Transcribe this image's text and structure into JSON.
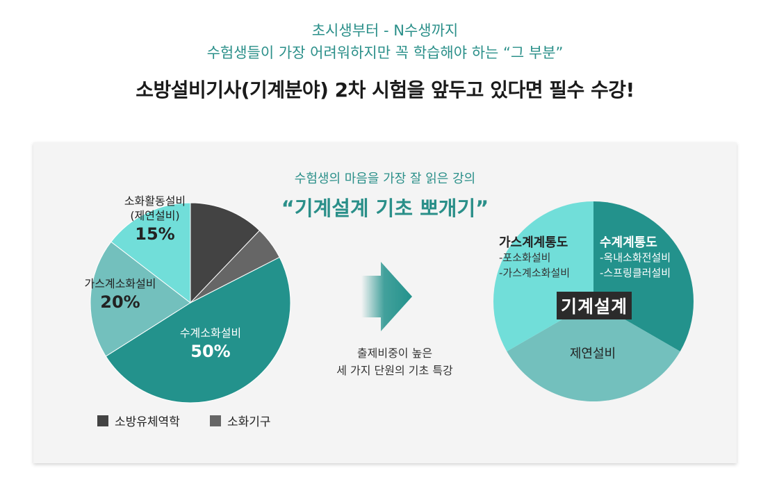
{
  "header": {
    "line1": "초시생부터 - N수생까지",
    "line2": "수험생들이 가장 어려워하지만 꼭 학습해야 하는 “그 부분”",
    "headline": "소방설비기사(기계분야) 2차 시험을 앞두고 있다면 필수 수강!"
  },
  "panel": {
    "tagline": "수험생의 마음을 가장 잘 읽은 강의",
    "title": "“기계설계 기초 뽀개기”",
    "arrow_caption_1": "출제비중이 높은",
    "arrow_caption_2": "세 가지 단원의 기초 특강"
  },
  "chart_data": [
    {
      "type": "pie",
      "title": "",
      "slices": [
        {
          "label": "소방유체역학",
          "value": 12.5,
          "color": "#434343"
        },
        {
          "label": "소화기구",
          "value": 5.5,
          "color": "#666666"
        },
        {
          "label": "수계소화설비",
          "value": 50,
          "display": "50%",
          "color": "#23928c"
        },
        {
          "label": "가스계소화설비",
          "value": 20,
          "display": "20%",
          "color": "#73c0bd"
        },
        {
          "label": "소화활동설비",
          "sublabel": "(제연설비)",
          "value": 15,
          "display": "15%",
          "color": "#71ded9"
        }
      ],
      "legend": [
        {
          "label": "소방유체역학",
          "color": "#434343"
        },
        {
          "label": "소화기구",
          "color": "#666666"
        }
      ],
      "legend_position": "bottom"
    },
    {
      "type": "pie",
      "title": "",
      "center_label": "기계설계",
      "slices": [
        {
          "label": "수계계통도",
          "items": [
            "-옥내소화전설비",
            "-스프링클러설비"
          ],
          "value": 1,
          "color": "#23928c"
        },
        {
          "label": "제연설비",
          "items": [],
          "value": 1,
          "color": "#73c0bd"
        },
        {
          "label": "가스계계통도",
          "items": [
            "-포소화설비",
            "-가스계소화설비"
          ],
          "value": 1,
          "color": "#71ded9"
        }
      ]
    }
  ]
}
